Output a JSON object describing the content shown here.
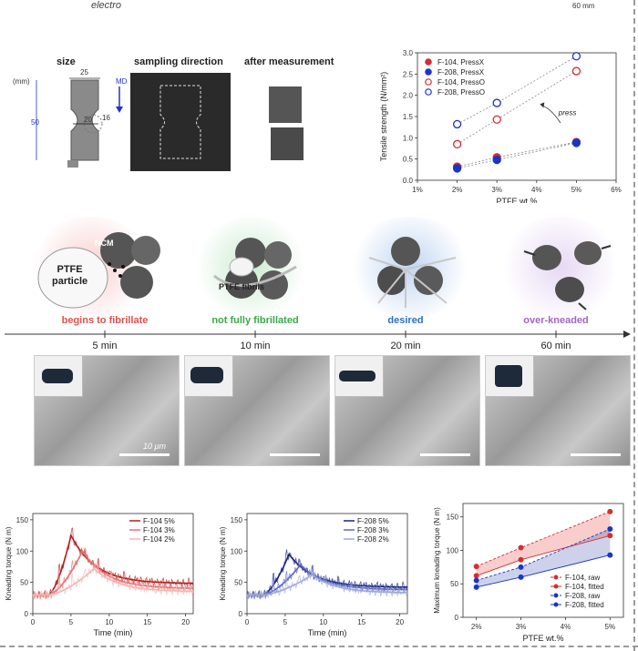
{
  "top": {
    "left_text": "electro",
    "right_text": "60 mm"
  },
  "specimen": {
    "titles": {
      "size": "size",
      "sampling": "sampling direction",
      "after": "after measurement"
    },
    "dims": {
      "unit": "(mm)",
      "width": "25",
      "height": "50",
      "neck": "20",
      "radius": "16"
    },
    "md": "MD"
  },
  "tensile_chart_data": {
    "type": "scatter",
    "xlabel": "PTFE wt.%",
    "ylabel": "Tensile strength (N/mm²)",
    "x_ticks": [
      "1%",
      "2%",
      "3%",
      "4%",
      "5%",
      "6%"
    ],
    "y_ticks": [
      "0.0",
      "0.5",
      "1.0",
      "1.5",
      "2.0",
      "2.5",
      "3.0"
    ],
    "xlim": [
      1,
      6
    ],
    "ylim": [
      0,
      3.0
    ],
    "legend_position": "top-left",
    "annotation": "press",
    "series": [
      {
        "name": "F-104, PressX",
        "color": "#d32f2f",
        "filled": true,
        "x": [
          2,
          3,
          5
        ],
        "y": [
          0.32,
          0.54,
          0.9
        ]
      },
      {
        "name": "F-208, PressX",
        "color": "#1a35c9",
        "filled": true,
        "x": [
          2,
          3,
          5
        ],
        "y": [
          0.28,
          0.48,
          0.88
        ]
      },
      {
        "name": "F-104, PressO",
        "color": "#d32f2f",
        "filled": false,
        "x": [
          2,
          3,
          5
        ],
        "y": [
          0.85,
          1.43,
          2.57
        ]
      },
      {
        "name": "F-208, PressO",
        "color": "#1a35c9",
        "filled": false,
        "x": [
          2,
          3,
          5
        ],
        "y": [
          1.32,
          1.82,
          2.92
        ]
      }
    ]
  },
  "stages": [
    {
      "label": "begins to fibrillate",
      "color": "#d9534f",
      "time": "5 min"
    },
    {
      "label": "not fully fibrillated",
      "color": "#3aa84a",
      "time": "10 min"
    },
    {
      "label": "desired",
      "color": "#2c6fb7",
      "time": "20 min"
    },
    {
      "label": "over-kneaded",
      "color": "#a066c8",
      "time": "60 min"
    }
  ],
  "schematic": {
    "ncm": "NCM",
    "ptfe_particle": "PTFE\nparticle",
    "ptfe_fibrils": "PTFE fibrils"
  },
  "sem": {
    "scale": "10 μm"
  },
  "torque104_chart_data": {
    "type": "line",
    "xlabel": "Time (min)",
    "ylabel": "Kneading torque (N m)",
    "x_ticks": [
      "0",
      "5",
      "10",
      "15",
      "20"
    ],
    "y_ticks": [
      "0",
      "50",
      "100",
      "150"
    ],
    "xlim": [
      0,
      21
    ],
    "ylim": [
      0,
      160
    ],
    "series": [
      {
        "name": "F-104 5%",
        "color": "#b71c1c",
        "peak": 125,
        "peak_t": 5.0,
        "end": 48
      },
      {
        "name": "F-104 3%",
        "color": "#e57373",
        "peak": 100,
        "peak_t": 6.5,
        "end": 40
      },
      {
        "name": "F-104 2%",
        "color": "#f4b6b6",
        "peak": 72,
        "peak_t": 8.0,
        "end": 35
      }
    ]
  },
  "torque208_chart_data": {
    "type": "line",
    "xlabel": "Time (min)",
    "ylabel": "Kneading torque (N m)",
    "x_ticks": [
      "0",
      "5",
      "10",
      "15",
      "20"
    ],
    "y_ticks": [
      "0",
      "50",
      "100",
      "150"
    ],
    "xlim": [
      0,
      21
    ],
    "ylim": [
      0,
      160
    ],
    "series": [
      {
        "name": "F-208 5%",
        "color": "#1a237e",
        "peak": 95,
        "peak_t": 5.5,
        "end": 42
      },
      {
        "name": "F-208 3%",
        "color": "#5c6bc0",
        "peak": 78,
        "peak_t": 7.0,
        "end": 38
      },
      {
        "name": "F-208 2%",
        "color": "#9fa8da",
        "peak": 62,
        "peak_t": 8.5,
        "end": 33
      }
    ]
  },
  "maxtorque_chart_data": {
    "type": "line",
    "xlabel": "PTFE wt.%",
    "ylabel": "Maximum kneading torque (N m)",
    "x_ticks": [
      "2%",
      "3%",
      "4%",
      "5%"
    ],
    "y_ticks": [
      "0",
      "50",
      "100",
      "150"
    ],
    "xlim": [
      1.7,
      5.3
    ],
    "ylim": [
      0,
      170
    ],
    "series": [
      {
        "name": "F-104, raw",
        "color": "#d32f2f",
        "x": [
          2,
          3,
          5
        ],
        "y": [
          76,
          104,
          158
        ]
      },
      {
        "name": "F-104, fitted",
        "color": "#d32f2f",
        "x": [
          2,
          3,
          5
        ],
        "y": [
          62,
          86,
          122
        ]
      },
      {
        "name": "F-208, raw",
        "color": "#1a35c9",
        "x": [
          2,
          3,
          5
        ],
        "y": [
          55,
          75,
          132
        ]
      },
      {
        "name": "F-208, fitted",
        "color": "#1a35c9",
        "x": [
          2,
          3,
          5
        ],
        "y": [
          45,
          60,
          93
        ]
      }
    ]
  }
}
